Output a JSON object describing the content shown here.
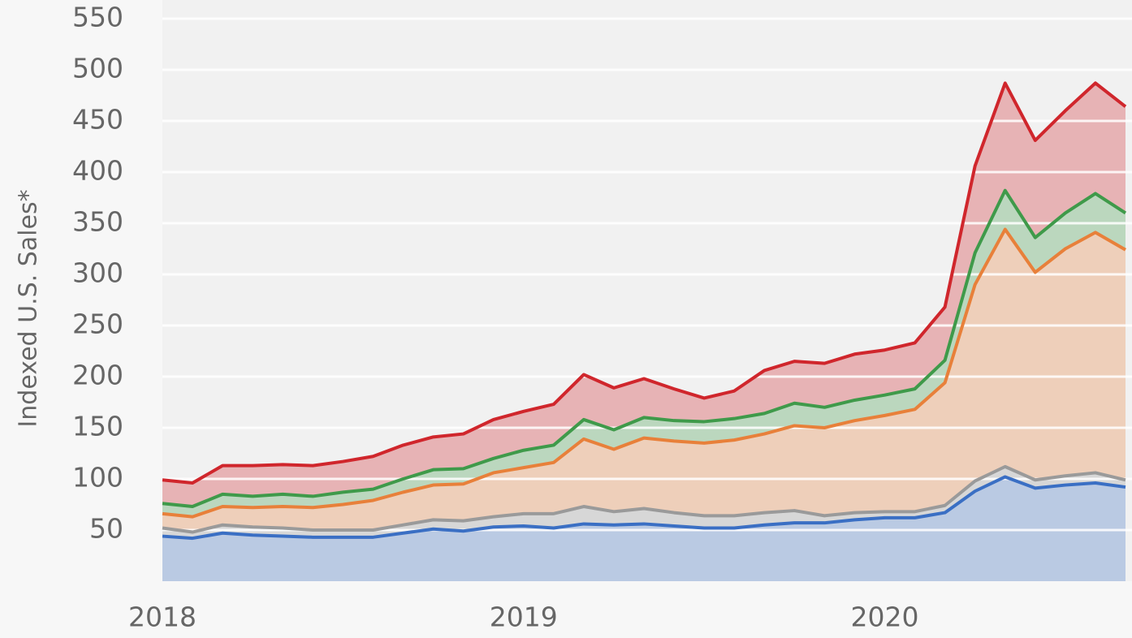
{
  "chart_data": {
    "type": "area",
    "stacked": true,
    "y_label": "Indexed U.S. Sales*",
    "categories": [
      "2018",
      null,
      null,
      null,
      null,
      null,
      null,
      null,
      null,
      null,
      null,
      null,
      "2019",
      null,
      null,
      null,
      null,
      null,
      null,
      null,
      null,
      null,
      null,
      null,
      "2020",
      null,
      null,
      null,
      null,
      null,
      null,
      null,
      null
    ],
    "series": [
      {
        "color": "#3a6fc4",
        "values": [
          44,
          42,
          47,
          45,
          44,
          43,
          43,
          43,
          47,
          51,
          49,
          53,
          54,
          52,
          56,
          55,
          56,
          54,
          52,
          52,
          55,
          57,
          57,
          60,
          62,
          62,
          67,
          88,
          102,
          91,
          94,
          96,
          92
        ]
      },
      {
        "color": "#9a9a9a",
        "values": [
          8,
          6,
          8,
          8,
          8,
          7,
          7,
          7,
          8,
          9,
          10,
          10,
          12,
          14,
          17,
          13,
          15,
          13,
          12,
          12,
          12,
          12,
          7,
          7,
          6,
          6,
          7,
          10,
          10,
          8,
          9,
          10,
          7
        ]
      },
      {
        "color": "#e8803a",
        "values": [
          14,
          15,
          18,
          19,
          21,
          22,
          25,
          29,
          32,
          34,
          36,
          43,
          45,
          50,
          66,
          61,
          69,
          70,
          71,
          74,
          77,
          83,
          86,
          90,
          94,
          100,
          120,
          192,
          232,
          203,
          222,
          235,
          225
        ]
      },
      {
        "color": "#3f9a4a",
        "values": [
          10,
          10,
          12,
          11,
          12,
          11,
          12,
          11,
          13,
          15,
          15,
          14,
          17,
          17,
          19,
          19,
          20,
          20,
          21,
          21,
          20,
          22,
          20,
          20,
          20,
          20,
          22,
          31,
          38,
          34,
          35,
          38,
          36
        ]
      },
      {
        "color": "#d0262c",
        "values": [
          23,
          23,
          28,
          30,
          29,
          30,
          30,
          32,
          33,
          32,
          34,
          38,
          38,
          40,
          44,
          41,
          38,
          31,
          23,
          27,
          42,
          41,
          43,
          45,
          44,
          45,
          52,
          85,
          105,
          95,
          100,
          108,
          104
        ]
      }
    ],
    "ylim": [
      0,
      550
    ],
    "yticks": [
      50,
      100,
      150,
      200,
      250,
      300,
      350,
      400,
      450,
      500,
      550
    ],
    "grid": true
  }
}
